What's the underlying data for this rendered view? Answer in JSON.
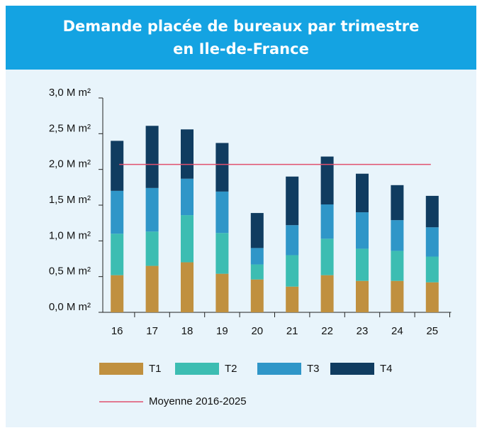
{
  "chart_data": {
    "type": "stacked_bar",
    "title": "Demande placée de bureaux par trimestre en Ile-de-France",
    "categories": [
      "16",
      "17",
      "18",
      "19",
      "20",
      "21",
      "22",
      "23",
      "24",
      "25"
    ],
    "series": [
      {
        "name": "T1",
        "color": "#c0903f",
        "values": [
          0.52,
          0.65,
          0.7,
          0.54,
          0.46,
          0.36,
          0.52,
          0.44,
          0.44,
          0.42
        ]
      },
      {
        "name": "T2",
        "color": "#3cbdb2",
        "values": [
          0.58,
          0.48,
          0.66,
          0.57,
          0.21,
          0.44,
          0.51,
          0.45,
          0.42,
          0.36
        ]
      },
      {
        "name": "T3",
        "color": "#2f96c8",
        "values": [
          0.6,
          0.61,
          0.51,
          0.58,
          0.23,
          0.42,
          0.48,
          0.51,
          0.43,
          0.41
        ]
      },
      {
        "name": "T4",
        "color": "#103c60",
        "values": [
          0.7,
          0.87,
          0.69,
          0.68,
          0.49,
          0.68,
          0.67,
          0.54,
          0.49,
          0.44
        ]
      }
    ],
    "average": {
      "name": "Moyenne 2016-2025",
      "value": 2.07,
      "color": "#e0506e"
    },
    "ylim": [
      0,
      3.0
    ],
    "yticks": [
      {
        "value": 0,
        "label": "0,0 M m²"
      },
      {
        "value": 0.5,
        "label": "0,5 M m²"
      },
      {
        "value": 1.0,
        "label": "1,0 M m²"
      },
      {
        "value": 1.5,
        "label": "1,5 M m²"
      },
      {
        "value": 2.0,
        "label": "2,0 M m²"
      },
      {
        "value": 2.5,
        "label": "2,5 M m²"
      },
      {
        "value": 3.0,
        "label": "3,0 M m²"
      }
    ]
  }
}
